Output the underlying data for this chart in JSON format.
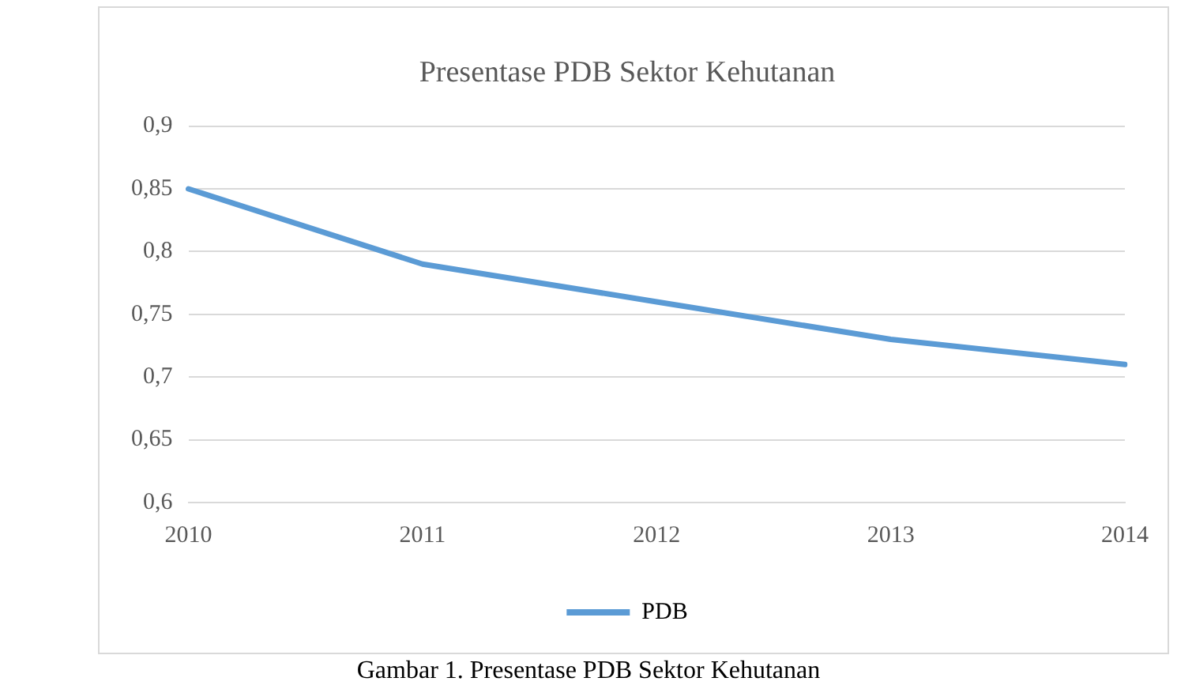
{
  "chart_data": {
    "type": "line",
    "title": "Presentase PDB Sektor Kehutanan",
    "categories": [
      "2010",
      "2011",
      "2012",
      "2013",
      "2014"
    ],
    "series": [
      {
        "name": "PDB",
        "color": "#5b9bd5",
        "values": [
          0.85,
          0.79,
          0.76,
          0.73,
          0.71
        ]
      }
    ],
    "ylim": [
      0.6,
      0.9
    ],
    "yticks": [
      {
        "value": 0.6,
        "label": "0,6"
      },
      {
        "value": 0.65,
        "label": "0,65"
      },
      {
        "value": 0.7,
        "label": "0,7"
      },
      {
        "value": 0.75,
        "label": "0,75"
      },
      {
        "value": 0.8,
        "label": "0,8"
      },
      {
        "value": 0.85,
        "label": "0,85"
      },
      {
        "value": 0.9,
        "label": "0,9"
      }
    ],
    "grid": "y",
    "legend": "bottom",
    "marker": "none",
    "line_style": "solid",
    "annotations": [
      "Gambar 1. Presentase PDB Sektor Kehutanan"
    ]
  }
}
